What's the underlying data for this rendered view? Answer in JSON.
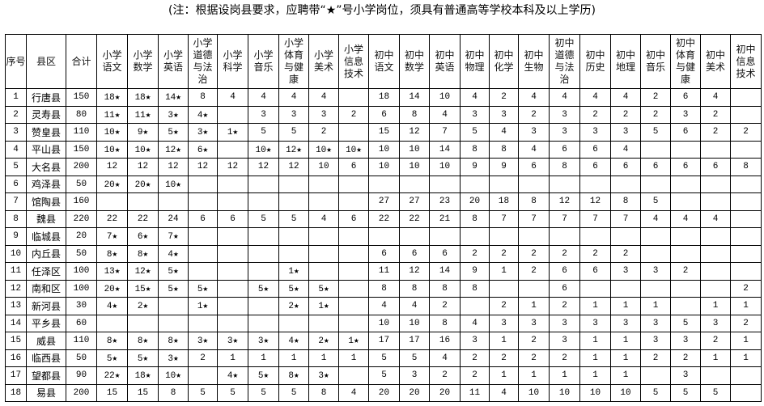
{
  "note": "(注：根据设岗县要求，应聘带“★”号小学岗位，须具有普通高等学校本科及以上学历)",
  "headers": [
    "序号",
    "县区",
    "合计",
    "小学语文",
    "小学数学",
    "小学英语",
    "小学道德与法治",
    "小学科学",
    "小学音乐",
    "小学体育与健康",
    "小学美术",
    "小学信息技术",
    "初中语文",
    "初中数学",
    "初中英语",
    "初中物理",
    "初中化学",
    "初中生物",
    "初中道德与法治",
    "初中历史",
    "初中地理",
    "初中音乐",
    "初中体育与健康",
    "初中美术",
    "初中信息技术"
  ],
  "rows": [
    [
      "1",
      "行唐县",
      "150",
      "18★",
      "18★",
      "14★",
      "8",
      "4",
      "4",
      "4",
      "4",
      "",
      "18",
      "14",
      "10",
      "4",
      "2",
      "4",
      "4",
      "4",
      "4",
      "2",
      "6",
      "4",
      ""
    ],
    [
      "2",
      "灵寿县",
      "80",
      "11★",
      "11★",
      "3★",
      "4★",
      "",
      "3",
      "3",
      "3",
      "2",
      "6",
      "8",
      "4",
      "3",
      "3",
      "2",
      "3",
      "2",
      "2",
      "2",
      "3",
      "2",
      ""
    ],
    [
      "3",
      "赞皇县",
      "110",
      "10★",
      "9★",
      "5★",
      "3★",
      "1★",
      "5",
      "5",
      "2",
      "",
      "15",
      "12",
      "7",
      "5",
      "4",
      "3",
      "3",
      "3",
      "3",
      "5",
      "6",
      "2",
      "2"
    ],
    [
      "4",
      "平山县",
      "150",
      "10★",
      "10★",
      "12★",
      "6★",
      "",
      "10★",
      "12★",
      "10★",
      "10★",
      "10",
      "10",
      "14",
      "8",
      "8",
      "4",
      "6",
      "6",
      "4",
      "",
      "",
      "",
      ""
    ],
    [
      "5",
      "大名县",
      "200",
      "12",
      "12",
      "12",
      "12",
      "12",
      "12",
      "12",
      "10",
      "6",
      "10",
      "10",
      "10",
      "9",
      "9",
      "6",
      "8",
      "6",
      "6",
      "6",
      "6",
      "6",
      "8"
    ],
    [
      "6",
      "鸡泽县",
      "50",
      "20★",
      "20★",
      "10★",
      "",
      "",
      "",
      "",
      "",
      "",
      "",
      "",
      "",
      "",
      "",
      "",
      "",
      "",
      "",
      "",
      "",
      "",
      ""
    ],
    [
      "7",
      "馆陶县",
      "160",
      "",
      "",
      "",
      "",
      "",
      "",
      "",
      "",
      "",
      "27",
      "27",
      "23",
      "20",
      "18",
      "8",
      "12",
      "12",
      "8",
      "5",
      "",
      "",
      ""
    ],
    [
      "8",
      "魏县",
      "220",
      "22",
      "22",
      "24",
      "6",
      "6",
      "5",
      "5",
      "4",
      "6",
      "22",
      "22",
      "21",
      "8",
      "7",
      "7",
      "7",
      "7",
      "7",
      "4",
      "4",
      "4",
      ""
    ],
    [
      "9",
      "临城县",
      "20",
      "7★",
      "6★",
      "7★",
      "",
      "",
      "",
      "",
      "",
      "",
      "",
      "",
      "",
      "",
      "",
      "",
      "",
      "",
      "",
      "",
      "",
      "",
      ""
    ],
    [
      "10",
      "内丘县",
      "50",
      "8★",
      "8★",
      "4★",
      "",
      "",
      "",
      "",
      "",
      "",
      "6",
      "6",
      "6",
      "2",
      "2",
      "2",
      "2",
      "2",
      "2",
      "",
      "",
      "",
      ""
    ],
    [
      "11",
      "任泽区",
      "100",
      "13★",
      "12★",
      "5★",
      "",
      "",
      "",
      "1★",
      "",
      "",
      "11",
      "12",
      "14",
      "9",
      "1",
      "2",
      "6",
      "6",
      "3",
      "3",
      "2",
      "",
      ""
    ],
    [
      "12",
      "南和区",
      "100",
      "20★",
      "15★",
      "5★",
      "5★",
      "",
      "5★",
      "5★",
      "5★",
      "",
      "8",
      "8",
      "8",
      "8",
      "",
      "",
      "6",
      "",
      "",
      "",
      "",
      "",
      "2"
    ],
    [
      "13",
      "新河县",
      "30",
      "4★",
      "2★",
      "",
      "1★",
      "",
      "",
      "2★",
      "1★",
      "",
      "4",
      "4",
      "2",
      "",
      "2",
      "1",
      "2",
      "1",
      "1",
      "1",
      "",
      "1",
      "1"
    ],
    [
      "14",
      "平乡县",
      "60",
      "",
      "",
      "",
      "",
      "",
      "",
      "",
      "",
      "",
      "10",
      "10",
      "8",
      "4",
      "3",
      "3",
      "3",
      "3",
      "3",
      "3",
      "5",
      "3",
      "2"
    ],
    [
      "15",
      "威县",
      "110",
      "8★",
      "8★",
      "8★",
      "3★",
      "3★",
      "3★",
      "4★",
      "2★",
      "1★",
      "17",
      "17",
      "16",
      "3",
      "1",
      "2",
      "3",
      "1",
      "1",
      "3",
      "3",
      "2",
      "1"
    ],
    [
      "16",
      "临西县",
      "50",
      "5★",
      "5★",
      "3★",
      "2",
      "1",
      "1",
      "1",
      "1",
      "1",
      "5",
      "5",
      "4",
      "2",
      "2",
      "2",
      "2",
      "1",
      "1",
      "2",
      "2",
      "1",
      "1"
    ],
    [
      "17",
      "望都县",
      "90",
      "22★",
      "18★",
      "10★",
      "",
      "4★",
      "5★",
      "8★",
      "3★",
      "",
      "5",
      "3",
      "2",
      "2",
      "1",
      "1",
      "1",
      "1",
      "1",
      "",
      "3",
      "",
      ""
    ],
    [
      "18",
      "易县",
      "200",
      "15",
      "15",
      "8",
      "5",
      "5",
      "5",
      "5",
      "8",
      "4",
      "20",
      "20",
      "20",
      "11",
      "4",
      "10",
      "10",
      "10",
      "10",
      "5",
      "5",
      "5",
      ""
    ]
  ]
}
